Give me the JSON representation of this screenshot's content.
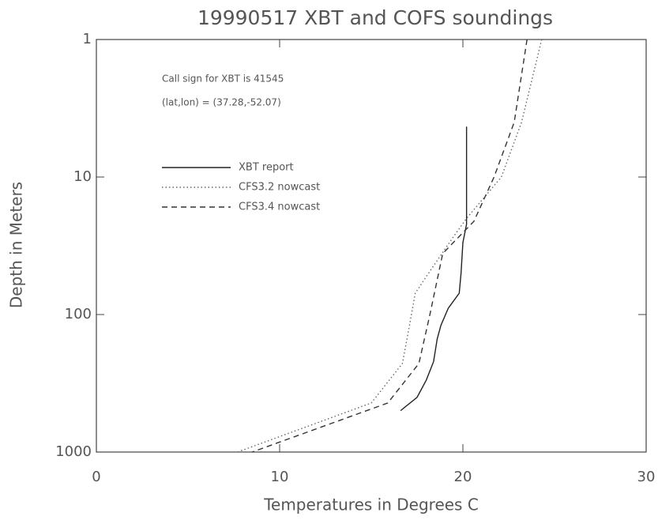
{
  "chart_data": {
    "type": "line",
    "title": "19990517 XBT and COFS soundings",
    "x_label": "Temperatures in Degrees C",
    "y_label": "Depth in Meters",
    "annotations": [
      "Call sign for XBT is 41545",
      "(lat,lon) = (37.28,-52.07)"
    ],
    "xlim": [
      0,
      30
    ],
    "xticks": [
      0,
      10,
      20,
      30
    ],
    "ylim": [
      1,
      1000
    ],
    "yticks": [
      1,
      10,
      100,
      1000
    ],
    "yscale": "log",
    "y_inverted": true,
    "grid": false,
    "legend": "upper-left",
    "series": [
      {
        "name": "XBT report",
        "color": "#222222",
        "style": "solid",
        "x": [
          20.2,
          20.2,
          20.0,
          19.9,
          19.8,
          19.2,
          18.8,
          18.6,
          18.4,
          18.0,
          17.5,
          16.6
        ],
        "values": [
          4.3,
          22,
          30,
          50,
          70,
          90,
          120,
          150,
          220,
          300,
          400,
          500
        ]
      },
      {
        "name": "CFS3.2 nowcast",
        "color": "#666666",
        "style": "dotted",
        "x": [
          24.3,
          23.2,
          22.1,
          20.2,
          19.5,
          18.0,
          17.4,
          17.1,
          16.7,
          15.0,
          7.7
        ],
        "values": [
          1,
          4,
          10,
          20,
          27,
          53,
          70,
          117,
          227,
          440,
          1000
        ]
      },
      {
        "name": "CFS3.4 nowcast",
        "color": "#333333",
        "style": "dashed",
        "x": [
          23.5,
          22.8,
          21.7,
          20.6,
          18.9,
          18.2,
          17.6,
          15.9,
          8.5
        ],
        "values": [
          1,
          4,
          10,
          21,
          36,
          100,
          227,
          440,
          1000
        ]
      }
    ]
  }
}
